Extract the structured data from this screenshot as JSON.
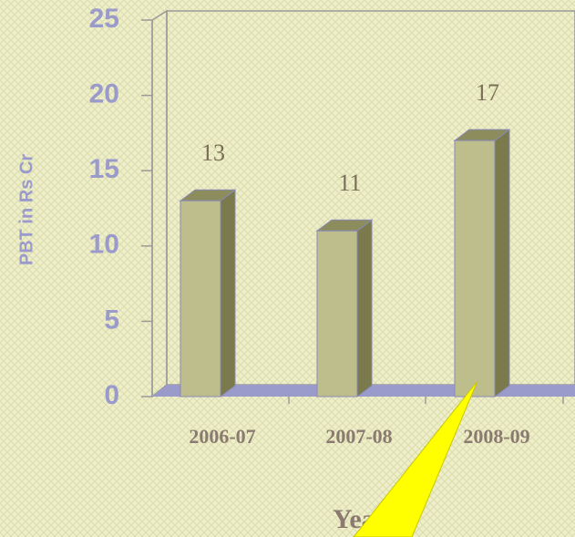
{
  "chart_data": {
    "type": "bar3d",
    "y_label": "PBT in Rs Cr",
    "x_label": "Year",
    "categories": [
      "2006-07",
      "2007-08",
      "2008-09"
    ],
    "values": [
      13,
      11,
      17
    ],
    "color": "#bebe8c",
    "ylim": [
      0,
      25
    ],
    "yticks": [
      0,
      5,
      10,
      15,
      20,
      25
    ]
  }
}
